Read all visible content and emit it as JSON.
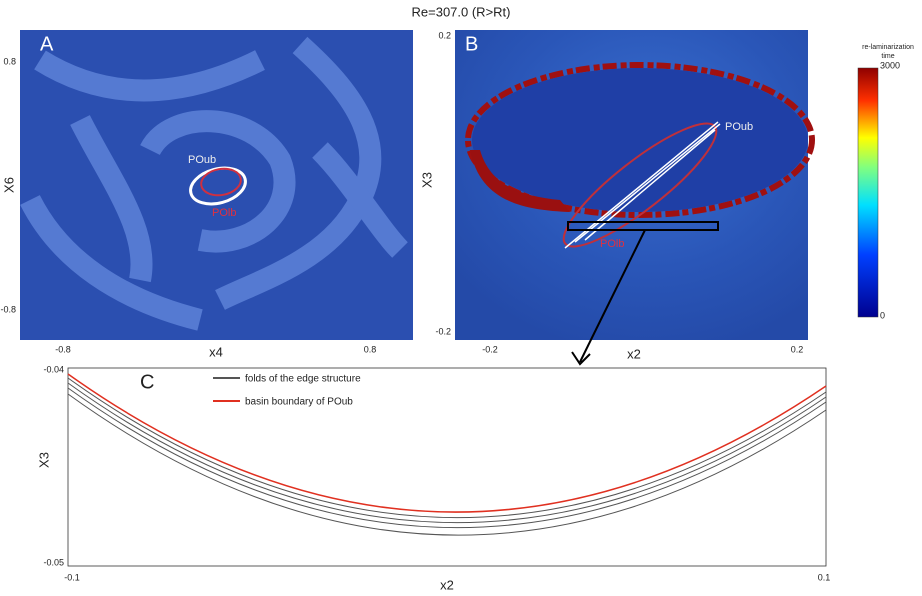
{
  "title": "Re=307.0  (R>Rt)",
  "panels": [
    {
      "label": "A",
      "xlabel": "x4",
      "ylabel": "X6",
      "xticks": [
        "-0.8",
        "0.8"
      ],
      "yticks": [
        "0.8",
        "-0.8"
      ],
      "annotations": [
        "POub",
        "POlb"
      ]
    },
    {
      "label": "B",
      "xlabel": "x2",
      "ylabel": "X3",
      "xticks": [
        "-0.2",
        "0.2"
      ],
      "yticks": [
        "0.2",
        "-0.2"
      ],
      "annotations": [
        "POub",
        "POlb"
      ]
    },
    {
      "label": "C",
      "xlabel": "x2",
      "ylabel": "X3",
      "xticks": [
        "-0.1",
        "0.1"
      ],
      "yticks": [
        "-0.04",
        "-0.05"
      ],
      "legend": [
        "folds of the edge structure",
        "basin boundary of POub"
      ]
    }
  ],
  "colorbar": {
    "title": [
      "re-laminarization",
      "time"
    ],
    "ticks": [
      "3000",
      "0"
    ]
  }
}
